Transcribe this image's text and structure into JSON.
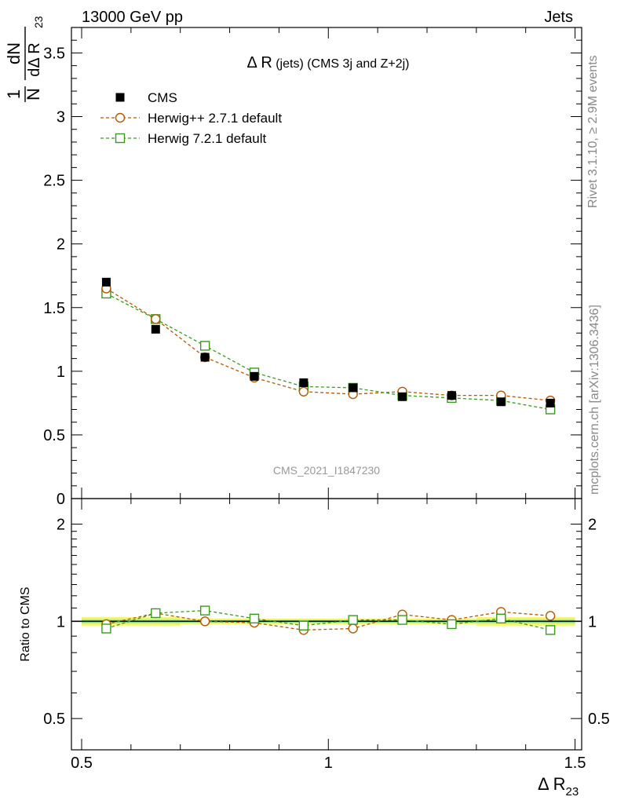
{
  "header": {
    "left": "13000 GeV pp",
    "right": "Jets"
  },
  "main_panel": {
    "title_prefix": "Δ R",
    "title_small": " (jets) ",
    "title_suffix": "(CMS 3j and Z+2j)",
    "y_label_num": "1",
    "y_label_frac_top": "dN",
    "y_label_frac_bottom_N": "N",
    "y_label_frac_bottom_d": "dΔ R",
    "y_label_sub": "23",
    "watermark": "CMS_2021_I1847230",
    "y_ticks": [
      "0",
      "0.5",
      "1",
      "1.5",
      "2",
      "2.5",
      "3",
      "3.5"
    ]
  },
  "ratio_panel": {
    "y_label": "Ratio to CMS",
    "y_ticks": [
      "0.5",
      "1",
      "2"
    ]
  },
  "x_axis": {
    "label_main": "Δ R",
    "label_sub": "23",
    "ticks": [
      "0.5",
      "1",
      "1.5"
    ]
  },
  "side_text": {
    "rivet": "Rivet 3.1.10, ≥ 2.9M events",
    "mcplots": "mcplots.cern.ch [arXiv:1306.3436]"
  },
  "legend": [
    {
      "label": "CMS",
      "marker": "filled-square",
      "color": "#000000"
    },
    {
      "label": "Herwig++ 2.7.1 default",
      "marker": "open-circle",
      "color": "#b35900"
    },
    {
      "label": "Herwig 7.2.1 default",
      "marker": "open-square",
      "color": "#3a9a1f"
    }
  ],
  "chart_data": {
    "type": "scatter",
    "x": [
      0.55,
      0.65,
      0.75,
      0.85,
      0.95,
      1.05,
      1.15,
      1.25,
      1.35,
      1.45
    ],
    "xlim": [
      0.5,
      1.5
    ],
    "main": {
      "ylim": [
        0,
        3.7
      ],
      "series": [
        {
          "name": "CMS",
          "values": [
            1.7,
            1.33,
            1.11,
            0.96,
            0.91,
            0.87,
            0.8,
            0.81,
            0.76,
            0.75
          ]
        },
        {
          "name": "Herwig++ 2.7.1 default",
          "values": [
            1.65,
            1.41,
            1.11,
            0.95,
            0.84,
            0.82,
            0.84,
            0.81,
            0.81,
            0.77
          ]
        },
        {
          "name": "Herwig 7.2.1 default",
          "values": [
            1.61,
            1.41,
            1.2,
            0.99,
            0.88,
            0.87,
            0.81,
            0.79,
            0.77,
            0.7
          ]
        }
      ]
    },
    "ratio": {
      "scale": "log",
      "ylim": [
        0.4,
        2.4
      ],
      "series": [
        {
          "name": "Herwig++ 2.7.1 default",
          "values": [
            0.98,
            1.06,
            1.0,
            0.99,
            0.94,
            0.95,
            1.05,
            1.01,
            1.07,
            1.04
          ]
        },
        {
          "name": "Herwig 7.2.1 default",
          "values": [
            0.95,
            1.06,
            1.08,
            1.02,
            0.97,
            1.01,
            1.01,
            0.98,
            1.02,
            0.94
          ]
        }
      ],
      "band_inner": [
        0.015,
        0.015,
        0.01,
        0.01,
        0.01,
        0.01,
        0.01,
        0.01,
        0.015,
        0.015
      ],
      "band_outer": [
        0.03,
        0.03,
        0.02,
        0.02,
        0.02,
        0.02,
        0.02,
        0.02,
        0.03,
        0.03
      ]
    }
  }
}
